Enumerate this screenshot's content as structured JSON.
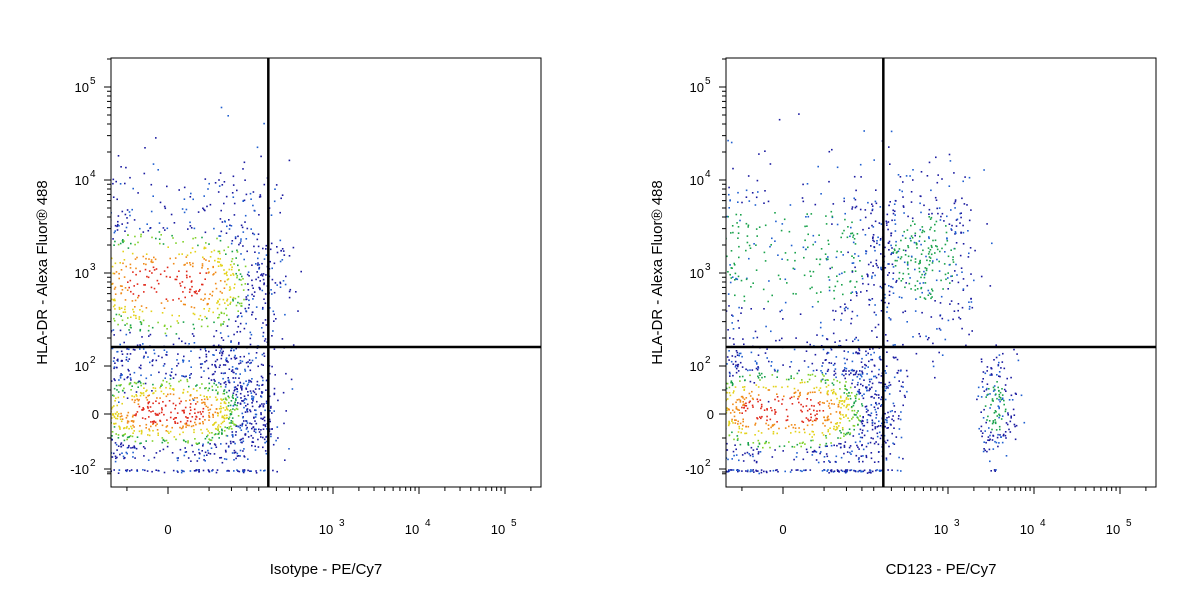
{
  "chart_data": [
    {
      "type": "scatter",
      "subtype": "flow-cytometry-density-dot-plot",
      "xlabel": "Isotype - PE/Cy7",
      "ylabel": "HLA-DR - Alexa Fluor® 488",
      "x_scale": "biexponential",
      "y_scale": "biexponential",
      "x_ticks": [
        {
          "value": 0,
          "base": "0",
          "exp": ""
        },
        {
          "value": 1000,
          "base": "10",
          "exp": "3"
        },
        {
          "value": 10000,
          "base": "10",
          "exp": "4"
        },
        {
          "value": 100000,
          "base": "10",
          "exp": "5"
        }
      ],
      "y_ticks": [
        {
          "value": -100,
          "base": "-10",
          "exp": "2"
        },
        {
          "value": 0,
          "base": "0",
          "exp": ""
        },
        {
          "value": 100,
          "base": "10",
          "exp": "2"
        },
        {
          "value": 1000,
          "base": "10",
          "exp": "3"
        },
        {
          "value": 10000,
          "base": "10",
          "exp": "4"
        },
        {
          "value": 100000,
          "base": "10",
          "exp": "5"
        }
      ],
      "quadrant_gate": {
        "x": 250,
        "y": 160
      },
      "density_colors": [
        "#1a1aa0",
        "#1f5fd0",
        "#19a24b",
        "#7fd12a",
        "#e3d21a",
        "#f08a18",
        "#e0281a"
      ],
      "populations": [
        {
          "x_center": 0,
          "y_center": 5,
          "x_spread": 120,
          "y_spread": 70,
          "relative_size": 0.55
        },
        {
          "x_center": 0,
          "y_center": 800,
          "x_spread": 150,
          "y_spread_log": 0.55,
          "relative_size": 0.45
        }
      ]
    },
    {
      "type": "scatter",
      "subtype": "flow-cytometry-density-dot-plot",
      "xlabel": "CD123 - PE/Cy7",
      "ylabel": "HLA-DR - Alexa Fluor® 488",
      "x_scale": "biexponential",
      "y_scale": "biexponential",
      "x_ticks": [
        {
          "value": 0,
          "base": "0",
          "exp": ""
        },
        {
          "value": 1000,
          "base": "10",
          "exp": "3"
        },
        {
          "value": 10000,
          "base": "10",
          "exp": "4"
        },
        {
          "value": 100000,
          "base": "10",
          "exp": "5"
        }
      ],
      "y_ticks": [
        {
          "value": -100,
          "base": "-10",
          "exp": "2"
        },
        {
          "value": 0,
          "base": "0",
          "exp": ""
        },
        {
          "value": 100,
          "base": "10",
          "exp": "2"
        },
        {
          "value": 1000,
          "base": "10",
          "exp": "3"
        },
        {
          "value": 10000,
          "base": "10",
          "exp": "4"
        },
        {
          "value": 100000,
          "base": "10",
          "exp": "5"
        }
      ],
      "quadrant_gate": {
        "x": 250,
        "y": 160
      },
      "density_colors": [
        "#1a1aa0",
        "#1f5fd0",
        "#19a24b",
        "#7fd12a",
        "#e3d21a",
        "#f08a18",
        "#e0281a"
      ],
      "populations": [
        {
          "x_center": 0,
          "y_center": 10,
          "x_spread": 150,
          "y_spread": 80,
          "relative_size": 0.55
        },
        {
          "x_center": 0,
          "y_center": 1500,
          "x_spread": 160,
          "y_spread_log": 0.55,
          "relative_size": 0.22
        },
        {
          "x_center": 600,
          "y_center": 1500,
          "x_spread_log": 0.3,
          "y_spread_log": 0.45,
          "relative_size": 0.16
        },
        {
          "x_center": 3500,
          "y_center": 20,
          "x_spread_log": 0.12,
          "y_spread": 60,
          "relative_size": 0.07
        }
      ]
    }
  ]
}
